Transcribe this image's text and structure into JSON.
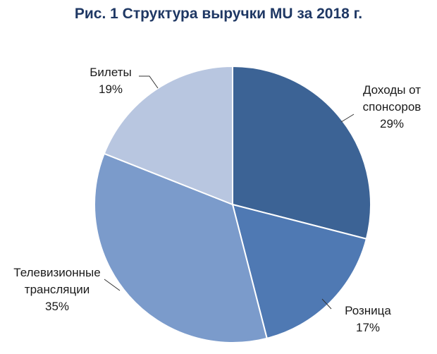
{
  "chart_data": {
    "type": "pie",
    "title": "Рис. 1 Структура выручки MU за 2018 г.",
    "slices": [
      {
        "label_lines": [
          "Доходы от",
          "спонсоров"
        ],
        "value": 29,
        "value_label": "29%",
        "color": "#3c6395"
      },
      {
        "label_lines": [
          "Розница"
        ],
        "value": 17,
        "value_label": "17%",
        "color": "#4f79b3"
      },
      {
        "label_lines": [
          "Телевизионные",
          "трансляции"
        ],
        "value": 35,
        "value_label": "35%",
        "color": "#7b9bcb"
      },
      {
        "label_lines": [
          "Билеты"
        ],
        "value": 19,
        "value_label": "19%",
        "color": "#b8c6e0"
      }
    ]
  }
}
